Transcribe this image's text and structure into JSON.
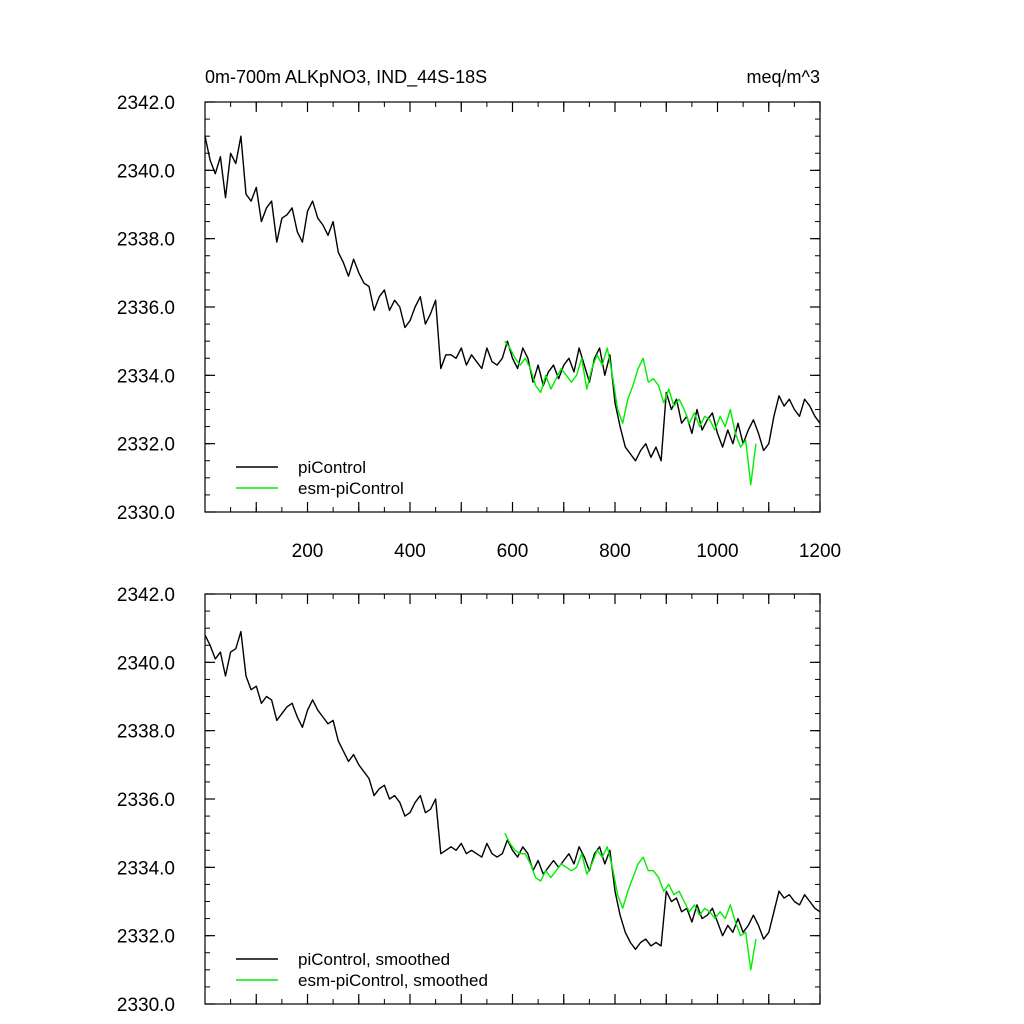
{
  "colors": {
    "picontrol": "#000000",
    "esm": "#00ee00",
    "frame": "#000000"
  },
  "chart_data": [
    {
      "type": "line",
      "title": "0m-700m ALKpNO3, IND_44S-18S",
      "units": "meq/m^3",
      "xlim": [
        0,
        1200
      ],
      "ylim": [
        2330,
        2342
      ],
      "yticks": [
        "2330.0",
        "2332.0",
        "2334.0",
        "2336.0",
        "2338.0",
        "2340.0",
        "2342.0"
      ],
      "xticks": [
        "200",
        "400",
        "600",
        "800",
        "1000",
        "1200"
      ],
      "grid": false,
      "legend_position": "bottom-left",
      "series": [
        {
          "name": "piControl",
          "x": [
            0,
            10,
            20,
            30,
            40,
            50,
            60,
            70,
            80,
            90,
            100,
            110,
            120,
            130,
            140,
            150,
            160,
            170,
            180,
            190,
            200,
            210,
            220,
            230,
            240,
            250,
            260,
            270,
            280,
            290,
            300,
            310,
            320,
            330,
            340,
            350,
            360,
            370,
            380,
            390,
            400,
            410,
            420,
            430,
            440,
            450,
            460,
            470,
            480,
            490,
            500,
            510,
            520,
            530,
            540,
            550,
            560,
            570,
            580,
            590,
            600,
            610,
            620,
            630,
            640,
            650,
            660,
            670,
            680,
            690,
            700,
            710,
            720,
            730,
            740,
            750,
            760,
            770,
            780,
            790,
            800,
            810,
            820,
            830,
            840,
            850,
            860,
            870,
            880,
            890,
            900,
            910,
            920,
            930,
            940,
            950,
            960,
            970,
            980,
            990,
            1000,
            1010,
            1020,
            1030,
            1040,
            1050,
            1060,
            1070,
            1080,
            1090,
            1100,
            1110,
            1120,
            1130,
            1140,
            1150,
            1160,
            1170,
            1180,
            1190,
            1200
          ],
          "values": [
            2341.0,
            2340.3,
            2339.9,
            2340.4,
            2339.2,
            2340.5,
            2340.2,
            2341.0,
            2339.3,
            2339.1,
            2339.5,
            2338.5,
            2338.9,
            2339.1,
            2337.9,
            2338.6,
            2338.7,
            2338.9,
            2338.2,
            2337.9,
            2338.8,
            2339.1,
            2338.6,
            2338.4,
            2338.1,
            2338.5,
            2337.6,
            2337.3,
            2336.9,
            2337.4,
            2337.0,
            2336.7,
            2336.6,
            2335.9,
            2336.3,
            2336.5,
            2335.9,
            2336.2,
            2336.0,
            2335.4,
            2335.6,
            2336.0,
            2336.3,
            2335.5,
            2335.8,
            2336.2,
            2334.2,
            2334.6,
            2334.6,
            2334.5,
            2334.8,
            2334.3,
            2334.6,
            2334.4,
            2334.2,
            2334.8,
            2334.4,
            2334.3,
            2334.5,
            2335.0,
            2334.5,
            2334.2,
            2334.8,
            2334.5,
            2333.8,
            2334.3,
            2333.7,
            2334.1,
            2334.3,
            2333.9,
            2334.3,
            2334.5,
            2334.1,
            2334.8,
            2334.3,
            2333.8,
            2334.5,
            2334.8,
            2334.0,
            2334.6,
            2333.2,
            2332.5,
            2331.9,
            2331.7,
            2331.5,
            2331.8,
            2332.0,
            2331.6,
            2331.9,
            2331.5,
            2333.5,
            2333.0,
            2333.3,
            2332.6,
            2332.8,
            2332.3,
            2333.0,
            2332.4,
            2332.7,
            2332.9,
            2332.3,
            2331.9,
            2332.4,
            2332.0,
            2332.6,
            2332.0,
            2332.4,
            2332.7,
            2332.3,
            2331.8,
            2332.0,
            2332.8,
            2333.4,
            2333.1,
            2333.3,
            2333.0,
            2332.8,
            2333.3,
            2333.1,
            2332.8,
            2332.6
          ]
        },
        {
          "name": "esm-piControl",
          "x": [
            585,
            595,
            605,
            615,
            625,
            635,
            645,
            655,
            665,
            675,
            685,
            695,
            705,
            715,
            725,
            735,
            745,
            755,
            765,
            775,
            785,
            795,
            805,
            815,
            825,
            835,
            845,
            855,
            865,
            875,
            885,
            895,
            905,
            915,
            925,
            935,
            945,
            955,
            965,
            975,
            985,
            995,
            1005,
            1015,
            1025,
            1035,
            1045,
            1055,
            1065,
            1075
          ],
          "values": [
            2335.0,
            2334.8,
            2334.5,
            2334.3,
            2334.5,
            2334.2,
            2333.7,
            2333.5,
            2334.0,
            2333.6,
            2333.9,
            2334.2,
            2334.0,
            2333.8,
            2334.0,
            2334.5,
            2333.6,
            2334.2,
            2334.6,
            2334.3,
            2334.8,
            2334.0,
            2333.0,
            2332.6,
            2333.3,
            2333.7,
            2334.2,
            2334.5,
            2333.8,
            2333.9,
            2333.7,
            2333.2,
            2333.6,
            2333.1,
            2333.3,
            2333.0,
            2332.6,
            2332.9,
            2332.5,
            2332.8,
            2332.7,
            2332.4,
            2332.8,
            2332.5,
            2333.0,
            2332.3,
            2331.9,
            2332.1,
            2330.8,
            2332.0
          ]
        }
      ]
    },
    {
      "type": "line",
      "ylim": [
        2330,
        2342
      ],
      "xlim": [
        0,
        1200
      ],
      "yticks": [
        "2330.0",
        "2332.0",
        "2334.0",
        "2336.0",
        "2338.0",
        "2340.0",
        "2342.0"
      ],
      "grid": false,
      "legend_position": "bottom-left",
      "series": [
        {
          "name": "piControl, smoothed",
          "x": [
            0,
            10,
            20,
            30,
            40,
            50,
            60,
            70,
            80,
            90,
            100,
            110,
            120,
            130,
            140,
            150,
            160,
            170,
            180,
            190,
            200,
            210,
            220,
            230,
            240,
            250,
            260,
            270,
            280,
            290,
            300,
            310,
            320,
            330,
            340,
            350,
            360,
            370,
            380,
            390,
            400,
            410,
            420,
            430,
            440,
            450,
            460,
            470,
            480,
            490,
            500,
            510,
            520,
            530,
            540,
            550,
            560,
            570,
            580,
            590,
            600,
            610,
            620,
            630,
            640,
            650,
            660,
            670,
            680,
            690,
            700,
            710,
            720,
            730,
            740,
            750,
            760,
            770,
            780,
            790,
            800,
            810,
            820,
            830,
            840,
            850,
            860,
            870,
            880,
            890,
            900,
            910,
            920,
            930,
            940,
            950,
            960,
            970,
            980,
            990,
            1000,
            1010,
            1020,
            1030,
            1040,
            1050,
            1060,
            1070,
            1080,
            1090,
            1100,
            1110,
            1120,
            1130,
            1140,
            1150,
            1160,
            1170,
            1180,
            1190,
            1200
          ],
          "values": [
            2340.8,
            2340.5,
            2340.1,
            2340.3,
            2339.6,
            2340.3,
            2340.4,
            2340.9,
            2339.6,
            2339.2,
            2339.3,
            2338.8,
            2339.0,
            2338.9,
            2338.3,
            2338.5,
            2338.7,
            2338.8,
            2338.4,
            2338.1,
            2338.6,
            2338.9,
            2338.6,
            2338.4,
            2338.2,
            2338.3,
            2337.7,
            2337.4,
            2337.1,
            2337.3,
            2337.0,
            2336.8,
            2336.6,
            2336.1,
            2336.3,
            2336.4,
            2336.0,
            2336.1,
            2335.9,
            2335.5,
            2335.6,
            2335.9,
            2336.1,
            2335.6,
            2335.7,
            2336.0,
            2334.4,
            2334.5,
            2334.6,
            2334.5,
            2334.7,
            2334.4,
            2334.5,
            2334.4,
            2334.3,
            2334.7,
            2334.4,
            2334.3,
            2334.4,
            2334.8,
            2334.5,
            2334.3,
            2334.6,
            2334.4,
            2333.9,
            2334.2,
            2333.8,
            2334.0,
            2334.2,
            2334.0,
            2334.2,
            2334.4,
            2334.1,
            2334.6,
            2334.3,
            2333.9,
            2334.4,
            2334.6,
            2334.1,
            2334.5,
            2333.3,
            2332.6,
            2332.1,
            2331.8,
            2331.6,
            2331.8,
            2331.9,
            2331.7,
            2331.8,
            2331.7,
            2333.3,
            2333.0,
            2333.1,
            2332.7,
            2332.8,
            2332.4,
            2332.9,
            2332.5,
            2332.6,
            2332.8,
            2332.4,
            2332.0,
            2332.3,
            2332.1,
            2332.5,
            2332.1,
            2332.3,
            2332.6,
            2332.3,
            2331.9,
            2332.1,
            2332.7,
            2333.3,
            2333.1,
            2333.2,
            2333.0,
            2332.9,
            2333.2,
            2333.0,
            2332.8,
            2332.7
          ]
        },
        {
          "name": "esm-piControl, smoothed",
          "x": [
            585,
            595,
            605,
            615,
            625,
            635,
            645,
            655,
            665,
            675,
            685,
            695,
            705,
            715,
            725,
            735,
            745,
            755,
            765,
            775,
            785,
            795,
            805,
            815,
            825,
            835,
            845,
            855,
            865,
            875,
            885,
            895,
            905,
            915,
            925,
            935,
            945,
            955,
            965,
            975,
            985,
            995,
            1005,
            1015,
            1025,
            1035,
            1045,
            1055,
            1065,
            1075
          ],
          "values": [
            2335.0,
            2334.7,
            2334.5,
            2334.4,
            2334.4,
            2334.1,
            2333.7,
            2333.6,
            2333.9,
            2333.7,
            2333.9,
            2334.1,
            2334.0,
            2333.9,
            2334.0,
            2334.4,
            2333.8,
            2334.1,
            2334.5,
            2334.3,
            2334.6,
            2334.0,
            2333.2,
            2332.8,
            2333.3,
            2333.7,
            2334.1,
            2334.3,
            2333.9,
            2333.9,
            2333.7,
            2333.3,
            2333.5,
            2333.2,
            2333.3,
            2333.0,
            2332.7,
            2332.9,
            2332.6,
            2332.8,
            2332.7,
            2332.5,
            2332.7,
            2332.5,
            2332.9,
            2332.4,
            2332.0,
            2332.1,
            2331.0,
            2331.9
          ]
        }
      ]
    }
  ]
}
